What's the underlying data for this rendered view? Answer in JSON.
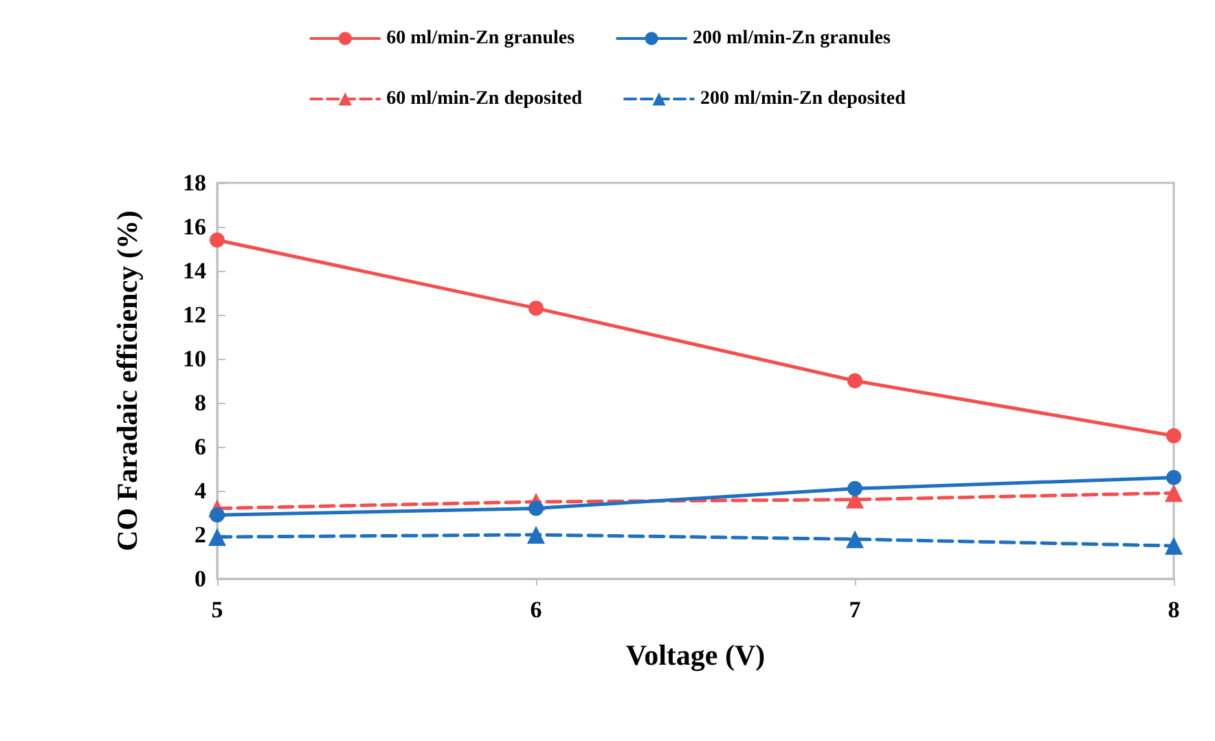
{
  "chart_data": {
    "type": "line",
    "xlabel": "Voltage (V)",
    "ylabel": "CO Faradaic efficiency (%)",
    "x": [
      5,
      6,
      7,
      8
    ],
    "xlim": [
      5,
      8
    ],
    "xticks": [
      5,
      6,
      7,
      8
    ],
    "ylim": [
      0,
      18
    ],
    "yticks": [
      0,
      2,
      4,
      6,
      8,
      10,
      12,
      14,
      16,
      18
    ],
    "grid": false,
    "legend": "top",
    "series": [
      {
        "name": "60 ml/min-Zn granules",
        "color": "#f44e4e",
        "values": [
          15.4,
          12.3,
          9.0,
          6.5
        ],
        "marker": "circle",
        "line_style": "solid"
      },
      {
        "name": "200 ml/min-Zn granules",
        "color": "#1f70c1",
        "values": [
          2.9,
          3.2,
          4.1,
          4.6
        ],
        "marker": "circle",
        "line_style": "solid"
      },
      {
        "name": "60 ml/min-Zn deposited",
        "color": "#f44e4e",
        "values": [
          3.2,
          3.5,
          3.6,
          3.9
        ],
        "marker": "triangle",
        "line_style": "dashed"
      },
      {
        "name": "200 ml/min-Zn deposited",
        "color": "#1f70c1",
        "values": [
          1.9,
          2.0,
          1.8,
          1.5
        ],
        "marker": "triangle",
        "line_style": "dashed"
      }
    ]
  }
}
